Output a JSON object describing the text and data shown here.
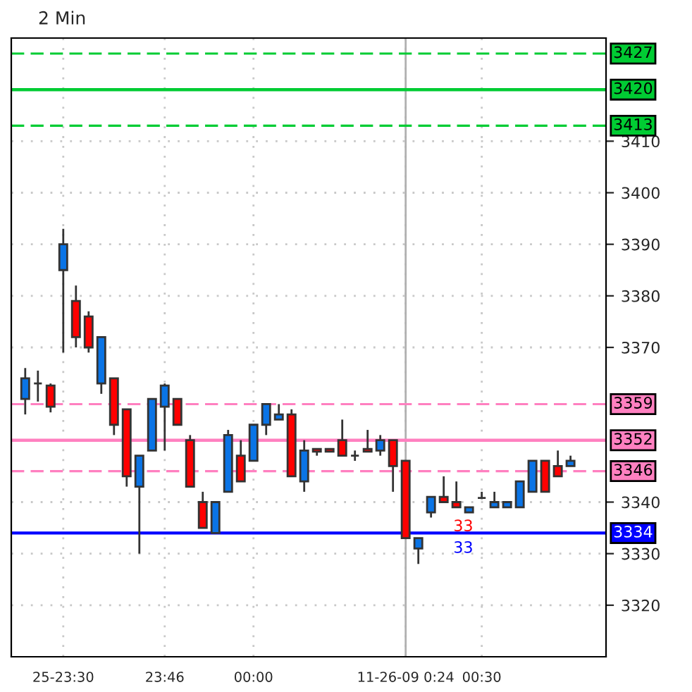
{
  "chart_data": {
    "type": "candlestick",
    "title": "2 Min",
    "categories": [
      null,
      null,
      null,
      "25-23:30",
      null,
      null,
      null,
      null,
      null,
      null,
      null,
      "23:46",
      null,
      null,
      null,
      null,
      null,
      null,
      "00:00",
      null,
      null,
      null,
      null,
      null,
      null,
      null,
      null,
      null,
      null,
      null,
      "11-26-09 0:24",
      null,
      null,
      null,
      null,
      null,
      "00:30",
      null,
      null,
      null,
      null,
      null,
      null,
      null
    ],
    "ohlc": [
      [
        3360,
        3366,
        3357,
        3364
      ],
      [
        3363,
        3365.5,
        3359.5,
        3363
      ],
      [
        3362.6,
        3363,
        3357.4,
        3358.5
      ],
      [
        3385,
        3393,
        3369,
        3390
      ],
      [
        3379,
        3382,
        3370,
        3372
      ],
      [
        3376,
        3377,
        3369,
        3370
      ],
      [
        3363,
        3372,
        3361,
        3372
      ],
      [
        3364,
        3364,
        3353,
        3355
      ],
      [
        3358,
        3358,
        3343,
        3345
      ],
      [
        3343,
        3349,
        3330,
        3349
      ],
      [
        3350,
        3360,
        3350,
        3360
      ],
      [
        3358.5,
        3363,
        3350,
        3362.6
      ],
      [
        3360,
        3360,
        3355,
        3355
      ],
      [
        3352,
        3353,
        3343,
        3343
      ],
      [
        3340,
        3342,
        3335,
        3335
      ],
      [
        3334,
        3340,
        3334,
        3340
      ],
      [
        3342,
        3354,
        3342,
        3353
      ],
      [
        3349,
        3352,
        3344,
        3344
      ],
      [
        3348,
        3355,
        3348,
        3355
      ],
      [
        3355,
        3359,
        3353,
        3359
      ],
      [
        3356,
        3359,
        3356,
        3357
      ],
      [
        3357,
        3358,
        3345,
        3345
      ],
      [
        3344,
        3352,
        3342,
        3350
      ],
      [
        3350.3,
        3350.3,
        3349,
        3349.8
      ],
      [
        3350.3,
        3350.3,
        3349.8,
        3349.8
      ],
      [
        3352,
        3356,
        3349,
        3349
      ],
      [
        3349,
        3350,
        3348,
        3349
      ],
      [
        3350.3,
        3354,
        3349.8,
        3349.8
      ],
      [
        3350,
        3353,
        3349,
        3352
      ],
      [
        3352,
        3352,
        3342,
        3347
      ],
      [
        3348,
        3348,
        3333,
        3333
      ],
      [
        3331,
        3333,
        3328,
        3333
      ],
      [
        3338,
        3341,
        3337,
        3341
      ],
      [
        3341,
        3345,
        3340,
        3340
      ],
      [
        3340,
        3344,
        3339,
        3339
      ],
      [
        3338,
        3339,
        3338,
        3339
      ],
      [
        3340.8,
        3342,
        3340.8,
        3340.8
      ],
      [
        3339,
        3342,
        3339,
        3340
      ],
      [
        3339,
        3340,
        3339,
        3340
      ],
      [
        3339,
        3344,
        3339,
        3344
      ],
      [
        3342,
        3348,
        3342,
        3348
      ],
      [
        3348,
        3348,
        3342,
        3342
      ],
      [
        3347,
        3350,
        3345,
        3345
      ],
      [
        3347,
        3349,
        3347,
        3348
      ]
    ],
    "colors": [
      "#0a74e6",
      "#333333",
      "#ff0000",
      "#0a74e6",
      "#ff0000",
      "#ff0000",
      "#0a74e6",
      "#ff0000",
      "#ff0000",
      "#0a74e6",
      "#0a74e6",
      "#0a74e6",
      "#ff0000",
      "#ff0000",
      "#ff0000",
      "#0a74e6",
      "#0a74e6",
      "#ff0000",
      "#0a74e6",
      "#0a74e6",
      "#0a74e6",
      "#ff0000",
      "#0a74e6",
      "#ff0000",
      "#ff0000",
      "#ff0000",
      "#333333",
      "#ff0000",
      "#0a74e6",
      "#ff0000",
      "#ff0000",
      "#0a74e6",
      "#0a74e6",
      "#ff0000",
      "#ff0000",
      "#0a74e6",
      "#333333",
      "#0a74e6",
      "#0a74e6",
      "#0a74e6",
      "#0a74e6",
      "#ff0000",
      "#ff0000",
      "#0a74e6"
    ],
    "ylim": [
      3310,
      3430
    ],
    "yticks": [
      3320,
      3330,
      3340,
      3370,
      3380,
      3390,
      3400,
      3410
    ],
    "grid": true,
    "legend": false,
    "ref_lines": [
      {
        "axis": "y",
        "value": 3427,
        "label": "3427",
        "color": "#00cc33",
        "line_style": "dashed"
      },
      {
        "axis": "y",
        "value": 3420,
        "label": "3420",
        "color": "#00cc33",
        "line_style": "solid"
      },
      {
        "axis": "y",
        "value": 3413,
        "label": "3413",
        "color": "#00cc33",
        "line_style": "dashed"
      },
      {
        "axis": "y",
        "value": 3359,
        "label": "3359",
        "color": "#ff80c0",
        "line_style": "dashed"
      },
      {
        "axis": "y",
        "value": 3352,
        "label": "3352",
        "color": "#ff80c0",
        "line_style": "solid"
      },
      {
        "axis": "y",
        "value": 3346,
        "label": "3346",
        "color": "#ff80c0",
        "line_style": "dashed"
      },
      {
        "axis": "y",
        "value": 3334,
        "label": "3334",
        "color": "#0000ff",
        "line_style": "solid"
      },
      {
        "axis": "x",
        "value": "11-26-09 0:24",
        "color": "#b0b0b0",
        "line_style": "solid"
      }
    ],
    "annotations": [
      "33",
      "33"
    ]
  }
}
